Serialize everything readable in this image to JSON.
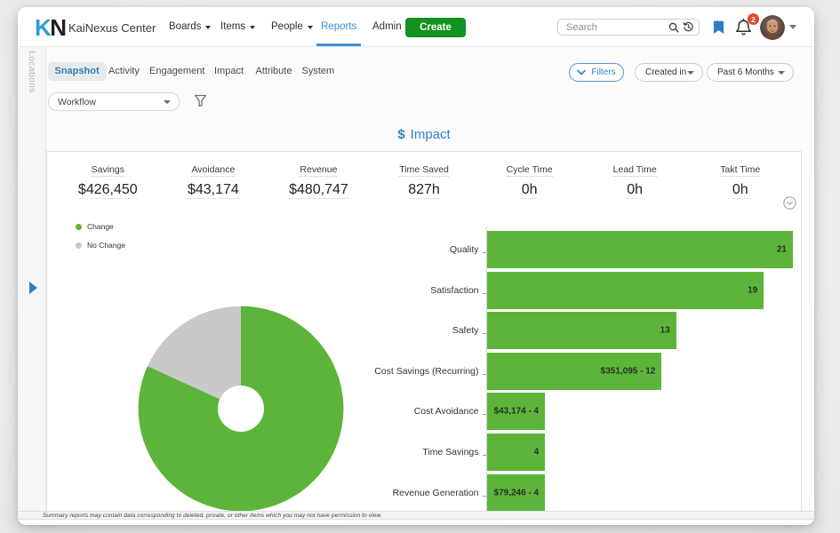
{
  "brand": {
    "logo_k": "K",
    "logo_n": "N",
    "app_title": "KaiNexus Center"
  },
  "topnav": {
    "items": [
      {
        "label": "Boards",
        "has_caret": true,
        "active": false
      },
      {
        "label": "Items",
        "has_caret": true,
        "active": false
      },
      {
        "label": "People",
        "has_caret": true,
        "active": false
      },
      {
        "label": "Reports",
        "has_caret": false,
        "active": true
      },
      {
        "label": "Admin",
        "has_caret": false,
        "active": false
      }
    ],
    "create_label": "Create"
  },
  "topbar_right": {
    "search_placeholder": "Search",
    "notification_count": "2",
    "icons": [
      "search-icon",
      "history-icon",
      "bookmark-icon",
      "bell-icon",
      "avatar",
      "caret-down-icon"
    ]
  },
  "sidebar": {
    "vertical_label": "Locations"
  },
  "report_tabs": [
    {
      "label": "Snapshot",
      "active": true
    },
    {
      "label": "Activity",
      "active": false
    },
    {
      "label": "Engagement",
      "active": false
    },
    {
      "label": "Impact",
      "active": false
    },
    {
      "label": "Attribute",
      "active": false
    },
    {
      "label": "System",
      "active": false
    }
  ],
  "filter_bar": {
    "filters_label": "Filters",
    "created_in_value": "Created in",
    "date_range_value": "Past 6 Months"
  },
  "workflow_select": {
    "value": "Workflow"
  },
  "impact_header": {
    "dollar_icon": "$",
    "title": "Impact"
  },
  "stats": [
    {
      "label": "Savings",
      "value": "$426,450"
    },
    {
      "label": "Avoidance",
      "value": "$43,174"
    },
    {
      "label": "Revenue",
      "value": "$480,747"
    },
    {
      "label": "Time Saved",
      "value": "827h"
    },
    {
      "label": "Cycle Time",
      "value": "0h"
    },
    {
      "label": "Lead Time",
      "value": "0h"
    },
    {
      "label": "Takt Time",
      "value": "0h"
    }
  ],
  "footer": {
    "disclaimer": "Summary reports may contain data corresponding to deleted, private, or other items which you may not have permission to view."
  },
  "colors": {
    "accent_blue": "#3383c4",
    "brand_blue": "#2b9cd8",
    "create_green": "#12921e",
    "chart_green": "#5cb53a",
    "chart_gray": "#c9c9c9",
    "badge_red": "#e2492f"
  },
  "chart_data": [
    {
      "type": "pie",
      "donut": true,
      "legend_position": "top-left",
      "series": [
        {
          "name": "Change",
          "percent": 81.8,
          "color": "#5cb53a"
        },
        {
          "name": "No Change",
          "percent": 18.2,
          "color": "#c9c9c9"
        }
      ]
    },
    {
      "type": "bar",
      "orientation": "horizontal",
      "categories": [
        "Quality",
        "Satisfaction",
        "Safety",
        "Cost Savings (Recurring)",
        "Cost Avoidance",
        "Time Savings",
        "Revenue Generation"
      ],
      "values": [
        21,
        19,
        13,
        12,
        4,
        4,
        4
      ],
      "bar_labels": [
        "21",
        "19",
        "13",
        "$351,095 - 12",
        "$43,174 - 4",
        "4",
        "$79,246 - 4"
      ],
      "color": "#5cb53a",
      "xlim": [
        0,
        21
      ],
      "grid": false
    }
  ]
}
